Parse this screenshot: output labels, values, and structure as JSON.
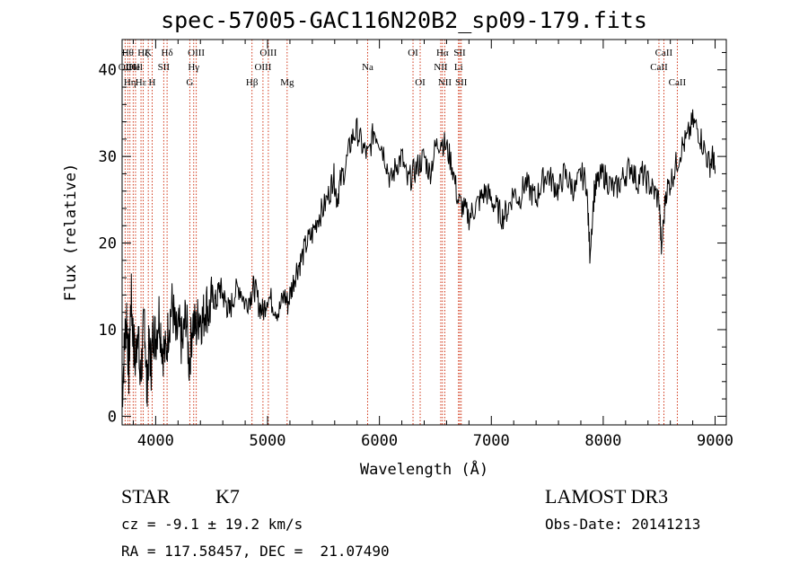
{
  "chart_data": {
    "type": "line",
    "title": "spec-57005-GAC116N20B2_sp09-179.fits",
    "xlabel": "Wavelength (Å)",
    "ylabel": "Flux (relative)",
    "xlim": [
      3700,
      9100
    ],
    "ylim": [
      -1,
      43.5
    ],
    "xticks": [
      4000,
      5000,
      6000,
      7000,
      8000,
      9000
    ],
    "yticks": [
      0,
      10,
      20,
      30,
      40
    ],
    "series": [
      {
        "name": "spectrum",
        "x": [
          3700,
          3720,
          3740,
          3760,
          3780,
          3800,
          3820,
          3840,
          3860,
          3880,
          3900,
          3920,
          3940,
          3960,
          3980,
          4000,
          4030,
          4060,
          4090,
          4120,
          4150,
          4180,
          4210,
          4240,
          4270,
          4300,
          4330,
          4360,
          4390,
          4420,
          4450,
          4480,
          4510,
          4540,
          4570,
          4600,
          4630,
          4660,
          4700,
          4750,
          4800,
          4850,
          4880,
          4920,
          4960,
          5000,
          5050,
          5100,
          5150,
          5180,
          5220,
          5260,
          5300,
          5350,
          5400,
          5450,
          5500,
          5560,
          5590,
          5620,
          5650,
          5700,
          5750,
          5800,
          5850,
          5900,
          5950,
          6000,
          6050,
          6100,
          6150,
          6200,
          6250,
          6300,
          6350,
          6400,
          6450,
          6500,
          6550,
          6600,
          6650,
          6700,
          6750,
          6800,
          6850,
          6900,
          6950,
          7000,
          7050,
          7100,
          7150,
          7200,
          7250,
          7300,
          7350,
          7400,
          7450,
          7500,
          7550,
          7600,
          7650,
          7700,
          7750,
          7800,
          7850,
          7880,
          7920,
          7950,
          8000,
          8050,
          8100,
          8150,
          8200,
          8250,
          8300,
          8350,
          8400,
          8450,
          8500,
          8520,
          8560,
          8600,
          8650,
          8700,
          8750,
          8800,
          8850,
          8900,
          8950,
          8980,
          9000
        ],
        "y": [
          2,
          8,
          12,
          5,
          14,
          9,
          6,
          11,
          4,
          7,
          12,
          3,
          8,
          6,
          10,
          9,
          12,
          8,
          7,
          11,
          13,
          9,
          10,
          8,
          12,
          6,
          11,
          10,
          12,
          11,
          13,
          12,
          14,
          13,
          15,
          14,
          13,
          12,
          14,
          15,
          13,
          14,
          15,
          13,
          12,
          14,
          13,
          12,
          14,
          13,
          15,
          17,
          18,
          20,
          21,
          23,
          24,
          26,
          28,
          25,
          27,
          29,
          32,
          33,
          31,
          30,
          33,
          32,
          30,
          27,
          29,
          30,
          27,
          28,
          29,
          30,
          28,
          31,
          32,
          31,
          29,
          25,
          24,
          23,
          24,
          25,
          26,
          25,
          24,
          23,
          24,
          26,
          25,
          27,
          26,
          25,
          27,
          28,
          27,
          26,
          28,
          27,
          26,
          28,
          27,
          19,
          26,
          27,
          28,
          27,
          26,
          27,
          28,
          29,
          27,
          28,
          27,
          26,
          25,
          19,
          26,
          27,
          29,
          31,
          32,
          34,
          33,
          31,
          29,
          30,
          28
        ]
      }
    ],
    "lines": [
      {
        "wavelength": 3727,
        "label": "OII",
        "row": 2
      },
      {
        "wavelength": 3751,
        "label": "Hθ",
        "row": 1
      },
      {
        "wavelength": 3770,
        "label": "Hη",
        "row": 3
      },
      {
        "wavelength": 3799,
        "label": "OII",
        "row": 2
      },
      {
        "wavelength": 3820,
        "label": "Hel",
        "row": 2
      },
      {
        "wavelength": 3869,
        "label": "Hε",
        "row": 3
      },
      {
        "wavelength": 3889,
        "label": "Hζ",
        "row": 1
      },
      {
        "wavelength": 3934,
        "label": "K",
        "row": 1
      },
      {
        "wavelength": 3969,
        "label": "H",
        "row": 3
      },
      {
        "wavelength": 4072,
        "label": "SII",
        "row": 2
      },
      {
        "wavelength": 4102,
        "label": "Hδ",
        "row": 1
      },
      {
        "wavelength": 4305,
        "label": "G",
        "row": 3
      },
      {
        "wavelength": 4340,
        "label": "Hγ",
        "row": 2
      },
      {
        "wavelength": 4363,
        "label": "OIII",
        "row": 1
      },
      {
        "wavelength": 4861,
        "label": "Hβ",
        "row": 3
      },
      {
        "wavelength": 4959,
        "label": "OIII",
        "row": 2
      },
      {
        "wavelength": 5007,
        "label": "OIII",
        "row": 1
      },
      {
        "wavelength": 5175,
        "label": "Mg",
        "row": 3
      },
      {
        "wavelength": 5894,
        "label": "Na",
        "row": 2
      },
      {
        "wavelength": 6300,
        "label": "OI",
        "row": 1
      },
      {
        "wavelength": 6364,
        "label": "OI",
        "row": 3
      },
      {
        "wavelength": 6548,
        "label": "NII",
        "row": 2
      },
      {
        "wavelength": 6563,
        "label": "Hα",
        "row": 1
      },
      {
        "wavelength": 6584,
        "label": "NII",
        "row": 3
      },
      {
        "wavelength": 6707,
        "label": "Li",
        "row": 2
      },
      {
        "wavelength": 6717,
        "label": "SII",
        "row": 1
      },
      {
        "wavelength": 6731,
        "label": "SII",
        "row": 3
      },
      {
        "wavelength": 8498,
        "label": "CaII",
        "row": 2
      },
      {
        "wavelength": 8542,
        "label": "CaII",
        "row": 1
      },
      {
        "wavelength": 8662,
        "label": "CaII",
        "row": 3
      }
    ]
  },
  "info": {
    "object_class": "STAR",
    "subclass": "K7",
    "survey": "LAMOST DR3",
    "cz_text": "cz = -9.1 ± 19.2 km/s",
    "obs_date_text": "Obs-Date: 20141213",
    "coords_text": "RA = 117.58457, DEC =  21.07490"
  },
  "colors": {
    "spectrum": "#000000",
    "marker": "#cc2200",
    "axis": "#000000"
  }
}
